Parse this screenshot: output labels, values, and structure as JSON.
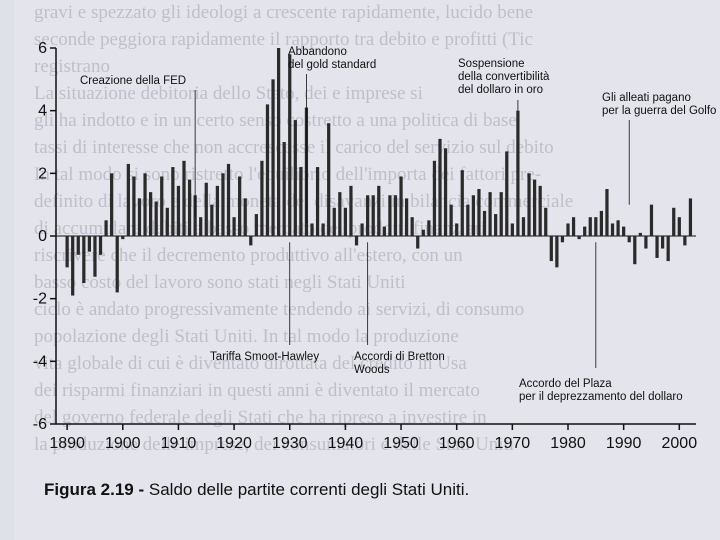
{
  "caption": {
    "figure_label": "Figura 2.19 -",
    "text": "Saldo delle partite correnti degli Stati Uniti."
  },
  "colors": {
    "bar": "#2a2a2a",
    "axis": "#111111",
    "paper": "#e3e4ec",
    "bleed_text": "#7a7d88"
  },
  "chart_data": {
    "type": "bar",
    "title": "",
    "xlabel": "",
    "ylabel": "",
    "ylim": [
      -6,
      6
    ],
    "xlim": [
      1888,
      2003
    ],
    "x_ticks": [
      "1890",
      "1900",
      "1910",
      "1920",
      "1930",
      "1940",
      "1950",
      "1960",
      "1970",
      "1980",
      "1990",
      "2000"
    ],
    "y_ticks": [
      "6",
      "4",
      "2",
      "0",
      "-2",
      "-4",
      "-6"
    ],
    "grid": false,
    "years": [
      1890,
      1891,
      1892,
      1893,
      1894,
      1895,
      1896,
      1897,
      1898,
      1899,
      1900,
      1901,
      1902,
      1903,
      1904,
      1905,
      1906,
      1907,
      1908,
      1909,
      1910,
      1911,
      1912,
      1913,
      1914,
      1915,
      1916,
      1917,
      1918,
      1919,
      1920,
      1921,
      1922,
      1923,
      1924,
      1925,
      1926,
      1927,
      1928,
      1929,
      1930,
      1931,
      1932,
      1933,
      1934,
      1935,
      1936,
      1937,
      1938,
      1939,
      1940,
      1941,
      1942,
      1943,
      1944,
      1945,
      1946,
      1947,
      1948,
      1949,
      1950,
      1951,
      1952,
      1953,
      1954,
      1955,
      1956,
      1957,
      1958,
      1959,
      1960,
      1961,
      1962,
      1963,
      1964,
      1965,
      1966,
      1967,
      1968,
      1969,
      1970,
      1971,
      1972,
      1973,
      1974,
      1975,
      1976,
      1977,
      1978,
      1979,
      1980,
      1981,
      1982,
      1983,
      1984,
      1985,
      1986,
      1987,
      1988,
      1989,
      1990,
      1991,
      1992,
      1993,
      1994,
      1995,
      1996,
      1997,
      1998,
      1999,
      2000,
      2001,
      2002
    ],
    "values": [
      -1.0,
      -1.9,
      -0.6,
      -1.5,
      -0.5,
      -1.3,
      -0.6,
      0.5,
      2.0,
      -1.8,
      -0.1,
      2.3,
      1.9,
      1.2,
      2.0,
      1.4,
      1.1,
      1.9,
      0.9,
      2.2,
      1.6,
      2.4,
      1.8,
      1.3,
      0.6,
      1.7,
      1.0,
      1.6,
      2.0,
      2.3,
      0.6,
      1.9,
      1.2,
      -0.3,
      0.7,
      2.4,
      4.2,
      5.0,
      6.0,
      3.0,
      5.8,
      3.7,
      2.2,
      4.1,
      0.4,
      2.2,
      0.4,
      3.6,
      0.9,
      1.4,
      0.9,
      1.6,
      -0.3,
      0.4,
      1.3,
      1.3,
      1.6,
      0.3,
      1.3,
      1.3,
      1.9,
      1.2,
      0.6,
      -0.4,
      0.2,
      0.5,
      2.4,
      3.1,
      2.8,
      1.0,
      0.4,
      2.1,
      1.0,
      1.3,
      1.5,
      0.8,
      1.4,
      0.7,
      1.4,
      2.7,
      0.4,
      4.0,
      0.6,
      2.0,
      1.8,
      1.6,
      0.9,
      -0.8,
      -1.0,
      -0.2,
      0.4,
      0.6,
      -0.1,
      0.3,
      0.6,
      0.6,
      0.8,
      1.5,
      0.4,
      0.5,
      0.3,
      -0.2,
      -0.9,
      0.1,
      -0.4,
      1.0,
      -0.7,
      -0.4,
      -0.8,
      0.9,
      0.6,
      -0.3,
      1.2
    ],
    "annotations": [
      {
        "text": "Creazione della FED",
        "year": 1913
      },
      {
        "text": "Abbandono del gold standard",
        "year": 1933
      },
      {
        "text": "Sospensione della convertibilità del dollaro in oro",
        "year": 1971
      },
      {
        "text": "Gli alleati pagano per la guerra del Golfo",
        "year": 1991
      },
      {
        "text": "Tariffa Smoot-Hawley",
        "year": 1930
      },
      {
        "text": "Accordi di Bretton Woods",
        "year": 1944
      },
      {
        "text": "Accordo del Plaza per il deprezzamento del dollaro",
        "year": 1985
      }
    ]
  },
  "bleed_text": [
    "gravi e spezzato gli ideologi a crescente rapidamente, lucido bene",
    "seconde peggiora rapidamente il rapporto tra debito e profitti (Tic",
    "registrano",
    "La situazione debitoria dello Stato, dei e imprese si",
    "gli ha indotto e in un certo senso costretto a una politica di base",
    "tassi di interesse che non accrescesse il carico del servizio sul debito",
    "In tal modo si sono ristretto l'equilibrio dell'importa dei fattori pre-",
    "definito di lavoro e della moneta dei disavanzi in bilancia commerciale",
    "di accumulare debiti a basso mercato dei prodotti finanziari",
    "riscrivere che il decremento produttivo all'estero, con un",
    "basso costo del lavoro sono stati negli Stati Uniti",
    "ciclo è andato progressivamente tendendo ai servizi, di consumo",
    "popolazione degli Stati Uniti. In tal modo la produzione",
    "vita globale di cui è diventato dirottata del credito in Usa",
    "dei risparmi finanziari in questi anni è diventato il mercato",
    "del governo federale degli Stati che ha ripreso a investire in",
    "la produzione delle imprese, dei consumatori e delle Stati Uniti"
  ]
}
